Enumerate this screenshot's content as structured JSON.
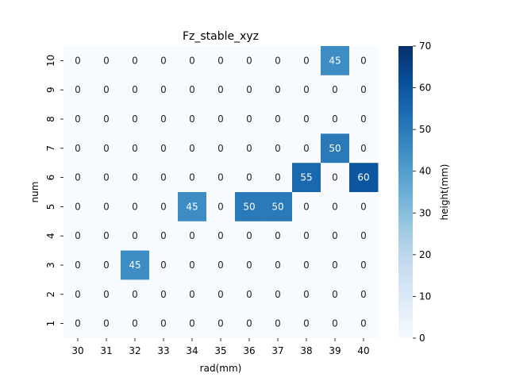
{
  "chart_data": {
    "type": "heatmap",
    "title": "Fz_stable_xyz",
    "xlabel": "rad(mm)",
    "ylabel": "num",
    "x": [
      "30",
      "31",
      "32",
      "33",
      "34",
      "35",
      "36",
      "37",
      "38",
      "39",
      "40"
    ],
    "y": [
      "10",
      "9",
      "8",
      "7",
      "6",
      "5",
      "4",
      "3",
      "2",
      "1"
    ],
    "values": [
      [
        0,
        0,
        0,
        0,
        0,
        0,
        0,
        0,
        0,
        45,
        0
      ],
      [
        0,
        0,
        0,
        0,
        0,
        0,
        0,
        0,
        0,
        0,
        0
      ],
      [
        0,
        0,
        0,
        0,
        0,
        0,
        0,
        0,
        0,
        0,
        0
      ],
      [
        0,
        0,
        0,
        0,
        0,
        0,
        0,
        0,
        0,
        50,
        0
      ],
      [
        0,
        0,
        0,
        0,
        0,
        0,
        0,
        0,
        55,
        0,
        60
      ],
      [
        0,
        0,
        0,
        0,
        45,
        0,
        50,
        50,
        0,
        0,
        0
      ],
      [
        0,
        0,
        0,
        0,
        0,
        0,
        0,
        0,
        0,
        0,
        0
      ],
      [
        0,
        0,
        45,
        0,
        0,
        0,
        0,
        0,
        0,
        0,
        0
      ],
      [
        0,
        0,
        0,
        0,
        0,
        0,
        0,
        0,
        0,
        0,
        0
      ],
      [
        0,
        0,
        0,
        0,
        0,
        0,
        0,
        0,
        0,
        0,
        0
      ]
    ],
    "colorbar": {
      "label": "height(mm)",
      "range": [
        0,
        70
      ],
      "ticks": [
        0,
        10,
        20,
        30,
        40,
        50,
        60,
        70
      ],
      "colormap": "Blues"
    },
    "annotations": true,
    "grid": false
  }
}
